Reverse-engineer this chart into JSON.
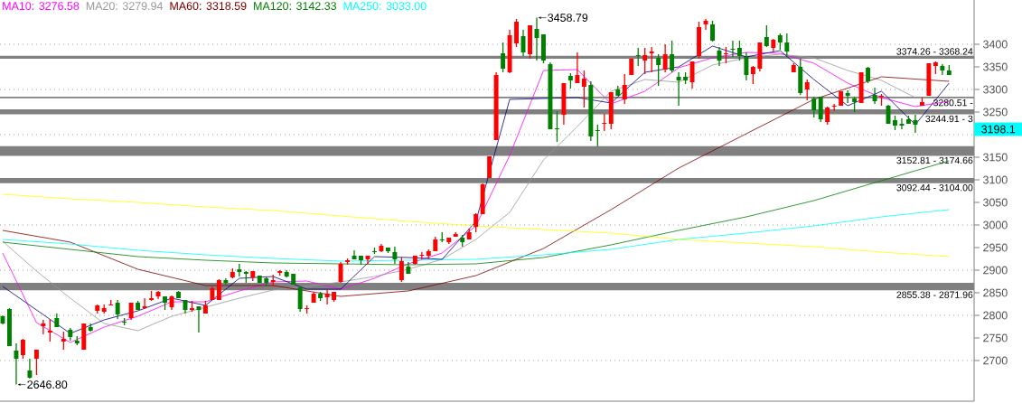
{
  "chart_data": {
    "type": "candlestick",
    "categories": [
      null,
      null,
      null,
      null,
      null,
      null,
      null,
      null,
      null,
      null,
      null,
      null,
      null,
      null,
      null,
      null,
      null,
      null,
      null,
      null,
      null,
      null,
      null,
      null,
      null,
      null,
      null,
      null,
      null,
      null,
      null,
      null,
      null,
      null,
      null,
      null,
      null,
      null,
      null,
      null,
      null,
      null,
      null,
      null,
      null,
      null,
      null,
      null,
      null,
      null,
      null,
      null,
      null,
      null,
      null,
      null,
      null,
      null,
      null,
      null,
      null,
      null,
      null,
      null,
      null,
      null,
      null,
      null,
      null,
      null,
      null,
      null,
      null,
      null,
      null,
      null,
      null,
      null,
      null,
      null,
      null,
      null,
      null,
      null,
      null,
      null,
      null,
      null,
      null,
      null,
      null,
      null,
      null,
      null,
      null,
      null,
      null,
      null,
      null,
      null,
      null,
      null,
      null,
      null,
      null,
      null,
      null,
      null,
      null,
      null,
      null,
      null,
      null,
      null,
      null,
      null,
      null,
      null,
      null,
      null,
      null,
      null,
      null,
      null,
      null,
      null,
      null,
      null,
      null,
      null,
      null,
      null,
      null,
      null,
      null,
      null,
      null,
      null,
      null,
      null,
      null
    ],
    "ohlc": [
      [
        2798,
        2800,
        2780,
        2782
      ],
      [
        2814,
        2816,
        2732,
        2732
      ],
      [
        2722,
        2738,
        2646.8,
        2704
      ],
      [
        2712,
        2748,
        2704,
        2746
      ],
      [
        2678,
        2704,
        2660,
        2662
      ],
      [
        2704,
        2724,
        2668,
        2724
      ],
      [
        2776,
        2790,
        2758,
        2782
      ],
      [
        2762,
        2792,
        2742,
        2766
      ],
      [
        2794,
        2804,
        2774,
        2774
      ],
      [
        2742,
        2764,
        2724,
        2748
      ],
      [
        2768,
        2772,
        2744,
        2752
      ],
      [
        2744,
        2754,
        2734,
        2738
      ],
      [
        2724,
        2782,
        2724,
        2782
      ],
      [
        2774,
        2782,
        2764,
        2766
      ],
      [
        2810,
        2824,
        2804,
        2822
      ],
      [
        2808,
        2824,
        2804,
        2816
      ],
      [
        2822,
        2834,
        2822,
        2824
      ],
      [
        2828,
        2834,
        2792,
        2802
      ],
      [
        2786,
        2794,
        2778,
        2784
      ],
      [
        2794,
        2828,
        2790,
        2828
      ],
      [
        2828,
        2832,
        2812,
        2812
      ],
      [
        2816,
        2838,
        2814,
        2820
      ],
      [
        2834,
        2854,
        2832,
        2838
      ],
      [
        2842,
        2854,
        2836,
        2852
      ],
      [
        2842,
        2842,
        2812,
        2828
      ],
      [
        2818,
        2844,
        2812,
        2842
      ],
      [
        2852,
        2854,
        2838,
        2838
      ],
      [
        2834,
        2834,
        2804,
        2812
      ],
      [
        2812,
        2832,
        2808,
        2816
      ],
      [
        2820,
        2820,
        2762,
        2812
      ],
      [
        2804,
        2832,
        2804,
        2822
      ],
      [
        2834,
        2864,
        2834,
        2860
      ],
      [
        2834,
        2880,
        2834,
        2878
      ],
      [
        2878,
        2882,
        2868,
        2872
      ],
      [
        2884,
        2904,
        2882,
        2896
      ],
      [
        2902,
        2914,
        2886,
        2896
      ],
      [
        2896,
        2898,
        2872,
        2892
      ],
      [
        2884,
        2898,
        2876,
        2898
      ],
      [
        2888,
        2888,
        2872,
        2872
      ],
      [
        2882,
        2884,
        2864,
        2872
      ],
      [
        2874,
        2890,
        2864,
        2878
      ],
      [
        2894,
        2900,
        2888,
        2898
      ],
      [
        2896,
        2900,
        2884,
        2886
      ],
      [
        2892,
        2892,
        2868,
        2868
      ],
      [
        2862,
        2864,
        2808,
        2814
      ],
      [
        2814,
        2822,
        2804,
        2816
      ],
      [
        2828,
        2852,
        2828,
        2848
      ],
      [
        2848,
        2852,
        2832,
        2838
      ],
      [
        2840,
        2856,
        2824,
        2848
      ],
      [
        2834,
        2852,
        2830,
        2852
      ],
      [
        2874,
        2918,
        2872,
        2914
      ],
      [
        2918,
        2926,
        2912,
        2922
      ],
      [
        2932,
        2944,
        2924,
        2924
      ],
      [
        2932,
        2932,
        2912,
        2922
      ],
      [
        2924,
        2932,
        2914,
        2932
      ],
      [
        2942,
        2950,
        2936,
        2940
      ],
      [
        2942,
        2958,
        2940,
        2954
      ],
      [
        2950,
        2950,
        2938,
        2942
      ],
      [
        2940,
        2952,
        2914,
        2924
      ],
      [
        2878,
        2928,
        2874,
        2920
      ],
      [
        2908,
        2918,
        2892,
        2892
      ],
      [
        2914,
        2932,
        2912,
        2932
      ],
      [
        2932,
        2940,
        2924,
        2934
      ],
      [
        2932,
        2946,
        2924,
        2942
      ],
      [
        2942,
        2974,
        2942,
        2968
      ],
      [
        2968,
        2984,
        2962,
        2966
      ],
      [
        2962,
        2972,
        2958,
        2972
      ],
      [
        2974,
        2984,
        2974,
        2980
      ],
      [
        2972,
        2978,
        2952,
        2962
      ],
      [
        2968,
        2992,
        2968,
        2984
      ],
      [
        2996,
        3026,
        2984,
        3024
      ],
      [
        3024,
        3092,
        3024,
        3090
      ],
      [
        3104,
        3152,
        3104,
        3152
      ],
      [
        3188,
        3338,
        3188,
        3332
      ],
      [
        3380,
        3404,
        3338,
        3346
      ],
      [
        3338,
        3432,
        3336,
        3420
      ],
      [
        3402,
        3456,
        3394,
        3450
      ],
      [
        3418,
        3432,
        3374,
        3382
      ],
      [
        3378,
        3442,
        3368,
        3442
      ],
      [
        3434,
        3458.79,
        3364,
        3414
      ],
      [
        3422,
        3422,
        3358,
        3364
      ],
      [
        3356,
        3360,
        3212,
        3212
      ],
      [
        3214,
        3252,
        3184,
        3212
      ],
      [
        3244,
        3314,
        3222,
        3314
      ],
      [
        3330,
        3336,
        3302,
        3320
      ],
      [
        3314,
        3382,
        3314,
        3332
      ],
      [
        3306,
        3342,
        3260,
        3324
      ],
      [
        3310,
        3318,
        3186,
        3196
      ],
      [
        3210,
        3222,
        3174,
        3208
      ],
      [
        3224,
        3246,
        3208,
        3226
      ],
      [
        3224,
        3294,
        3212,
        3294
      ],
      [
        3300,
        3308,
        3286,
        3286
      ],
      [
        3278,
        3334,
        3268,
        3310
      ],
      [
        3332,
        3368,
        3332,
        3368
      ],
      [
        3376,
        3392,
        3352,
        3374
      ],
      [
        3364,
        3392,
        3334,
        3376
      ],
      [
        3380,
        3394,
        3338,
        3384
      ],
      [
        3370,
        3378,
        3308,
        3354
      ],
      [
        3344,
        3400,
        3338,
        3378
      ],
      [
        3378,
        3408,
        3338,
        3342
      ],
      [
        3328,
        3338,
        3264,
        3320
      ],
      [
        3328,
        3338,
        3312,
        3320
      ],
      [
        3316,
        3362,
        3302,
        3362
      ],
      [
        3374,
        3450,
        3368,
        3438
      ],
      [
        3444,
        3456,
        3432,
        3452
      ],
      [
        3444,
        3452,
        3406,
        3408
      ],
      [
        3386,
        3394,
        3352,
        3364
      ],
      [
        3378,
        3394,
        3358,
        3380
      ],
      [
        3390,
        3408,
        3372,
        3388
      ],
      [
        3392,
        3408,
        3364,
        3374
      ],
      [
        3372,
        3382,
        3320,
        3332
      ],
      [
        3334,
        3352,
        3312,
        3350
      ],
      [
        3346,
        3404,
        3340,
        3404
      ],
      [
        3416,
        3442,
        3394,
        3396
      ],
      [
        3392,
        3412,
        3384,
        3410
      ],
      [
        3420,
        3424,
        3388,
        3404
      ],
      [
        3404,
        3424,
        3374,
        3384
      ],
      [
        3338,
        3358,
        3338,
        3354
      ],
      [
        3350,
        3368,
        3288,
        3292
      ],
      [
        3300,
        3322,
        3276,
        3316
      ],
      [
        3280,
        3284,
        3238,
        3254
      ],
      [
        3284,
        3284,
        3228,
        3234
      ],
      [
        3228,
        3262,
        3222,
        3260
      ],
      [
        3262,
        3268,
        3252,
        3264
      ],
      [
        3264,
        3296,
        3264,
        3296
      ],
      [
        3292,
        3298,
        3270,
        3286
      ],
      [
        3280,
        3284,
        3250,
        3272
      ],
      [
        3270,
        3338,
        3270,
        3338
      ],
      [
        3348,
        3350,
        3314,
        3318
      ],
      [
        3288,
        3304,
        3268,
        3274
      ],
      [
        3284,
        3290,
        3264,
        3286
      ],
      [
        3264,
        3266,
        3224,
        3224
      ],
      [
        3232,
        3242,
        3210,
        3220
      ],
      [
        3224,
        3236,
        3212,
        3220
      ],
      [
        3234,
        3242,
        3224,
        3224
      ],
      [
        3232,
        3244,
        3204,
        3222
      ],
      [
        3264,
        3282,
        3264,
        3272
      ],
      [
        3286,
        3358,
        3286,
        3358
      ],
      [
        3352,
        3362,
        3334,
        3360
      ],
      [
        3352,
        3356,
        3332,
        3342
      ],
      [
        3342,
        3354,
        3332,
        3332
      ]
    ],
    "colors": [
      "#008000",
      "#008000",
      "#008000",
      "#ff0000",
      "#008000",
      "#ff0000",
      "#ff0000",
      "#ff0000",
      "#008000",
      "#ff0000",
      "#008000",
      "#008000",
      "#ff0000",
      "#008000",
      "#ff0000",
      "#ff0000",
      "#ff0000",
      "#008000",
      "#008000",
      "#ff0000",
      "#008000",
      "#ff0000",
      "#ff0000",
      "#ff0000",
      "#008000",
      "#ff0000",
      "#008000",
      "#008000",
      "#ff0000",
      "#008000",
      "#ff0000",
      "#ff0000",
      "#ff0000",
      "#008000",
      "#ff0000",
      "#008000",
      "#008000",
      "#ff0000",
      "#008000",
      "#008000",
      "#ff0000",
      "#ff0000",
      "#008000",
      "#008000",
      "#008000",
      "#ff0000",
      "#ff0000",
      "#008000",
      "#ff0000",
      "#ff0000",
      "#ff0000",
      "#ff0000",
      "#008000",
      "#008000",
      "#ff0000",
      "#008000",
      "#ff0000",
      "#008000",
      "#008000",
      "#ff0000",
      "#008000",
      "#ff0000",
      "#ff0000",
      "#ff0000",
      "#ff0000",
      "#008000",
      "#ff0000",
      "#ff0000",
      "#008000",
      "#ff0000",
      "#ff0000",
      "#ff0000",
      "#ff0000",
      "#ff0000",
      "#008000",
      "#ff0000",
      "#ff0000",
      "#008000",
      "#ff0000",
      "#008000",
      "#008000",
      "#008000",
      "#008000",
      "#ff0000",
      "#008000",
      "#ff0000",
      "#ff0000",
      "#008000",
      "#008000",
      "#ff0000",
      "#ff0000",
      "#008000",
      "#ff0000",
      "#ff0000",
      "#008000",
      "#ff0000",
      "#ff0000",
      "#008000",
      "#ff0000",
      "#008000",
      "#008000",
      "#008000",
      "#ff0000",
      "#ff0000",
      "#ff0000",
      "#008000",
      "#008000",
      "#ff0000",
      "#008000",
      "#008000",
      "#008000",
      "#ff0000",
      "#ff0000",
      "#008000",
      "#ff0000",
      "#008000",
      "#008000",
      "#ff0000",
      "#008000",
      "#ff0000",
      "#008000",
      "#008000",
      "#ff0000",
      "#ff0000",
      "#ff0000",
      "#008000",
      "#008000",
      "#ff0000",
      "#008000",
      "#008000",
      "#ff0000",
      "#008000",
      "#008000",
      "#008000",
      "#008000",
      "#008000",
      "#ff0000",
      "#ff0000",
      "#ff0000",
      "#008000",
      "#008000"
    ],
    "series": [
      {
        "type": "line",
        "name": "MA10: 3276.58",
        "color": "#ff00ff",
        "values": [
          2938,
          null,
          null,
          null,
          null,
          2784,
          null,
          null,
          null,
          null,
          2740,
          null,
          null,
          null,
          null,
          2774,
          null,
          null,
          null,
          null,
          2798,
          null,
          null,
          null,
          null,
          2830,
          null,
          null,
          null,
          null,
          2830,
          null,
          null,
          null,
          null,
          2854,
          null,
          null,
          null,
          null,
          2874,
          null,
          null,
          null,
          null,
          2876,
          null,
          null,
          null,
          null,
          2858,
          null,
          null,
          null,
          null,
          2882,
          null,
          null,
          null,
          null,
          2914,
          null,
          null,
          null,
          null,
          2938,
          null,
          null,
          null,
          null,
          2998,
          null,
          null,
          null,
          null,
          3154,
          null,
          null,
          null,
          null,
          3342,
          null,
          null,
          null,
          null,
          3344,
          null,
          null,
          null,
          null,
          3268,
          null,
          null,
          null,
          null,
          3296,
          null,
          null,
          null,
          null,
          3348,
          null,
          null,
          null,
          null,
          3370,
          null,
          null,
          null,
          null,
          3382,
          null,
          null,
          null,
          null,
          3380,
          null,
          null,
          null,
          null,
          3358,
          null,
          null,
          null,
          null,
          3314,
          null,
          null,
          null,
          null,
          3282,
          null,
          null,
          null,
          null,
          3262,
          null,
          null,
          null,
          null,
          3274
        ]
      },
      {
        "type": "line",
        "name": "MA20: 3279.94",
        "color": "#999999",
        "values": [
          2964,
          null,
          null,
          null,
          null,
          2898,
          null,
          null,
          null,
          null,
          2838,
          null,
          null,
          null,
          null,
          2782,
          null,
          null,
          null,
          null,
          2766,
          null,
          null,
          null,
          null,
          2798,
          null,
          null,
          null,
          null,
          2818,
          null,
          null,
          null,
          null,
          2838,
          null,
          null,
          null,
          null,
          2856,
          null,
          null,
          null,
          null,
          2864,
          null,
          null,
          null,
          null,
          2874,
          null,
          null,
          null,
          null,
          2886,
          null,
          null,
          null,
          null,
          2902,
          null,
          null,
          null,
          null,
          2924,
          null,
          null,
          null,
          null,
          2968,
          null,
          null,
          null,
          null,
          3028,
          null,
          null,
          null,
          null,
          3144,
          null,
          null,
          null,
          null,
          3218,
          null,
          null,
          null,
          null,
          3296,
          null,
          null,
          null,
          null,
          3322,
          null,
          null,
          null,
          null,
          3316,
          null,
          null,
          null,
          null,
          3354,
          null,
          null,
          null,
          null,
          3370,
          null,
          null,
          null,
          null,
          3378,
          null,
          null,
          null,
          null,
          3370,
          null,
          null,
          null,
          null,
          3342,
          null,
          null,
          null,
          null,
          3320,
          null,
          null,
          null,
          null,
          3282,
          null,
          null,
          null,
          null,
          3280
        ]
      },
      {
        "type": "line",
        "name": "MA60: 3318.59",
        "color": "#800000",
        "values": [
          2988,
          null,
          null,
          null,
          null,
          null,
          null,
          null,
          null,
          null,
          2962,
          null,
          null,
          null,
          null,
          null,
          null,
          null,
          null,
          null,
          2902,
          null,
          null,
          null,
          null,
          null,
          null,
          null,
          null,
          null,
          2866,
          null,
          null,
          null,
          null,
          null,
          null,
          null,
          null,
          null,
          2866,
          null,
          null,
          null,
          null,
          null,
          null,
          null,
          null,
          null,
          2842,
          null,
          null,
          null,
          null,
          null,
          null,
          null,
          null,
          null,
          2854,
          null,
          null,
          null,
          null,
          null,
          null,
          null,
          null,
          null,
          2888,
          null,
          null,
          null,
          null,
          null,
          null,
          null,
          null,
          null,
          2948,
          null,
          null,
          null,
          null,
          null,
          null,
          null,
          null,
          null,
          3034,
          null,
          null,
          null,
          null,
          null,
          null,
          null,
          null,
          null,
          3126,
          null,
          null,
          null,
          null,
          null,
          null,
          null,
          null,
          null,
          3202,
          null,
          null,
          null,
          null,
          null,
          null,
          null,
          null,
          null,
          3278,
          null,
          null,
          null,
          null,
          null,
          null,
          null,
          null,
          null,
          3328,
          null,
          null,
          null,
          null,
          null,
          null,
          null,
          null,
          null,
          3318
        ]
      },
      {
        "type": "line",
        "name": "MA120: 3142.33",
        "color": "#008000",
        "values": [
          2962,
          null,
          null,
          null,
          null,
          null,
          null,
          null,
          null,
          null,
          2946,
          null,
          null,
          null,
          null,
          null,
          null,
          null,
          null,
          null,
          2930,
          null,
          null,
          null,
          null,
          null,
          null,
          null,
          null,
          null,
          2922,
          null,
          null,
          null,
          null,
          null,
          null,
          null,
          null,
          null,
          2916,
          null,
          null,
          null,
          null,
          null,
          null,
          null,
          null,
          null,
          null,
          null,
          null,
          null,
          null,
          null,
          null,
          null,
          null,
          null,
          2912,
          null,
          null,
          null,
          null,
          null,
          null,
          null,
          null,
          null,
          2914,
          null,
          null,
          null,
          null,
          null,
          null,
          null,
          null,
          null,
          2928,
          null,
          null,
          null,
          null,
          null,
          null,
          null,
          null,
          null,
          2956,
          null,
          null,
          null,
          null,
          null,
          null,
          null,
          null,
          null,
          2988,
          null,
          null,
          null,
          null,
          null,
          null,
          null,
          null,
          null,
          3018,
          null,
          null,
          null,
          null,
          null,
          null,
          null,
          null,
          null,
          3054,
          null,
          null,
          null,
          null,
          null,
          null,
          null,
          null,
          null,
          3098,
          null,
          null,
          null,
          null,
          null,
          null,
          null,
          null,
          null,
          3142
        ]
      },
      {
        "type": "line",
        "name": "MA250: 3033.00",
        "color": "#00ffff",
        "values": [
          2968,
          null,
          null,
          null,
          null,
          null,
          null,
          null,
          null,
          null,
          2958,
          null,
          null,
          null,
          null,
          null,
          null,
          null,
          null,
          null,
          2944,
          null,
          null,
          null,
          null,
          null,
          null,
          null,
          null,
          null,
          2934,
          null,
          null,
          null,
          null,
          null,
          null,
          null,
          null,
          null,
          2926,
          null,
          null,
          null,
          null,
          null,
          null,
          null,
          null,
          null,
          2920,
          null,
          null,
          null,
          null,
          null,
          null,
          null,
          null,
          null,
          null,
          null,
          null,
          null,
          null,
          null,
          null,
          null,
          null,
          null,
          2924,
          null,
          null,
          null,
          null,
          null,
          null,
          null,
          null,
          null,
          2934,
          null,
          null,
          null,
          null,
          null,
          null,
          null,
          null,
          null,
          2946,
          null,
          null,
          null,
          null,
          null,
          null,
          null,
          null,
          null,
          2968,
          null,
          null,
          null,
          null,
          null,
          null,
          null,
          null,
          null,
          2982,
          null,
          null,
          null,
          null,
          null,
          null,
          null,
          null,
          null,
          2998,
          null,
          null,
          null,
          null,
          null,
          null,
          null,
          null,
          null,
          3018,
          null,
          null,
          null,
          null,
          null,
          null,
          null,
          null,
          null,
          3034
        ]
      },
      {
        "type": "line",
        "color": "#000080",
        "values": [
          2864,
          null,
          null,
          null,
          null,
          null,
          null,
          null,
          null,
          null,
          2760,
          null,
          null,
          null,
          null,
          2790,
          null,
          null,
          null,
          null,
          2810,
          null,
          null,
          null,
          null,
          2838,
          null,
          null,
          null,
          null,
          2822,
          null,
          null,
          null,
          null,
          2882,
          null,
          null,
          null,
          null,
          2886,
          null,
          null,
          null,
          null,
          2858,
          null,
          null,
          null,
          null,
          2858,
          null,
          null,
          null,
          null,
          2930,
          null,
          null,
          null,
          null,
          2928,
          null,
          null,
          null,
          null,
          2924,
          null,
          null,
          null,
          null,
          3008,
          null,
          null,
          null,
          null,
          3278,
          null,
          null,
          null,
          null,
          null,
          null,
          null,
          null,
          null,
          3282,
          null,
          null,
          null,
          null,
          3270,
          null,
          null,
          null,
          null,
          3338,
          null,
          null,
          null,
          null,
          3350,
          null,
          null,
          null,
          null,
          3396,
          null,
          null,
          null,
          null,
          3372,
          null,
          null,
          null,
          null,
          3386,
          null,
          null,
          null,
          null,
          3322,
          null,
          null,
          null,
          null,
          3264,
          null,
          null,
          null,
          null,
          3296,
          null,
          null,
          null,
          null,
          3222,
          null,
          null,
          null,
          null,
          3314
        ]
      },
      {
        "type": "line",
        "color": "#ffff00",
        "values": [
          3068,
          null,
          null,
          null,
          null,
          null,
          null,
          null,
          null,
          null,
          3058,
          null,
          null,
          null,
          null,
          null,
          null,
          null,
          null,
          null,
          3050,
          null,
          null,
          null,
          null,
          null,
          null,
          null,
          null,
          null,
          3040,
          null,
          null,
          null,
          null,
          null,
          null,
          null,
          null,
          null,
          3032,
          null,
          null,
          null,
          null,
          null,
          null,
          null,
          null,
          null,
          3020,
          null,
          null,
          null,
          null,
          null,
          null,
          null,
          null,
          null,
          3008,
          null,
          null,
          null,
          null,
          null,
          null,
          null,
          null,
          null,
          2998,
          null,
          null,
          null,
          null,
          null,
          null,
          null,
          null,
          null,
          2990,
          null,
          null,
          null,
          null,
          null,
          null,
          null,
          null,
          null,
          2982,
          null,
          null,
          null,
          null,
          null,
          null,
          null,
          null,
          null,
          2968,
          null,
          null,
          null,
          null,
          null,
          null,
          null,
          null,
          null,
          2960,
          null,
          null,
          null,
          null,
          null,
          null,
          null,
          null,
          null,
          2952,
          null,
          null,
          null,
          null,
          null,
          null,
          null,
          null,
          null,
          2940,
          null,
          null,
          null,
          null,
          null,
          null,
          null,
          null,
          null,
          2930
        ]
      }
    ],
    "bands": [
      {
        "axis": "y",
        "from": 2855.38,
        "to": 2871.96,
        "label": "2855.38 - 2871.96",
        "color": "#808080"
      },
      {
        "axis": "y",
        "from": 3092.44,
        "to": 3104.0,
        "label": "3092.44 - 3104.00",
        "color": "#808080"
      },
      {
        "axis": "y",
        "from": 3152.81,
        "to": 3174.66,
        "label": "3152.81 - 3174.66",
        "color": "#808080"
      },
      {
        "axis": "y",
        "from": 3368.24,
        "to": 3374.26,
        "label": "3374.26 - 3368.24",
        "color": "#808080"
      },
      {
        "axis": "y",
        "from": 3280.51,
        "to": 3284,
        "label": "3280.51 -",
        "color": "#808080"
      },
      {
        "axis": "y",
        "from": 3244.91,
        "to": 3256,
        "label": "3244.91 - 3",
        "color": "#808080"
      }
    ],
    "annotations": [
      "3458.79",
      "2646.80",
      "3198.1"
    ],
    "ylim": [
      2610,
      3498
    ],
    "yticks": [
      2700,
      2750,
      2800,
      2850,
      2900,
      2950,
      3000,
      3050,
      3100,
      3150,
      {
        "value": 3200,
        "label": null
      },
      3250,
      3300,
      3350,
      3400
    ],
    "grid": "y",
    "legend": "top left",
    "tick_labels": "y"
  }
}
